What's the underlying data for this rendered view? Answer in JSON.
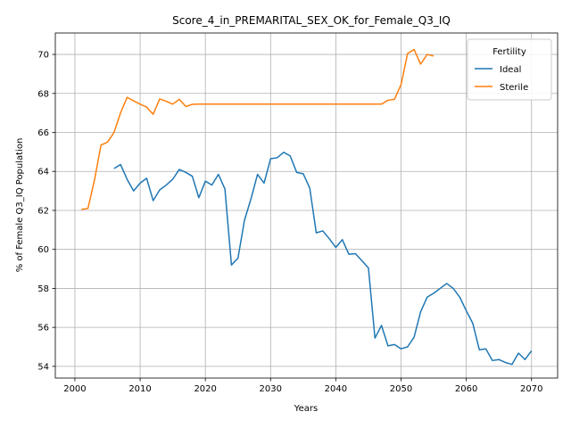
{
  "chart_data": {
    "type": "line",
    "title": "Score_4_in_PREMARITAL_SEX_OK_for_Female_Q3_IQ",
    "xlabel": "Years",
    "ylabel": "% of Female Q3_IQ Population",
    "xlim": [
      1997,
      2074
    ],
    "ylim": [
      53.4,
      71.1
    ],
    "xticks": [
      2000,
      2010,
      2020,
      2030,
      2040,
      2050,
      2060,
      2070
    ],
    "yticks": [
      54,
      56,
      58,
      60,
      62,
      64,
      66,
      68,
      70
    ],
    "grid": true,
    "legend": {
      "title": "Fertility",
      "placement": "top-right"
    },
    "series": [
      {
        "name": "Ideal",
        "color": "#1f77b4",
        "x": [
          2006,
          2007,
          2008,
          2009,
          2010,
          2011,
          2012,
          2013,
          2014,
          2015,
          2016,
          2017,
          2018,
          2019,
          2020,
          2021,
          2022,
          2023,
          2024,
          2025,
          2026,
          2027,
          2028,
          2029,
          2030,
          2031,
          2032,
          2033,
          2034,
          2035,
          2036,
          2037,
          2038,
          2039,
          2040,
          2041,
          2042,
          2043,
          2044,
          2045,
          2046,
          2047,
          2048,
          2049,
          2050,
          2051,
          2052,
          2053,
          2054,
          2055,
          2056,
          2057,
          2058,
          2059,
          2060,
          2061,
          2062,
          2063,
          2064,
          2065,
          2066,
          2067,
          2068,
          2069,
          2070
        ],
        "y": [
          64.15,
          64.35,
          63.6,
          63.0,
          63.4,
          63.65,
          62.5,
          63.05,
          63.3,
          63.6,
          64.1,
          63.95,
          63.75,
          62.65,
          63.5,
          63.3,
          63.85,
          63.1,
          59.2,
          59.55,
          61.5,
          62.6,
          63.85,
          63.4,
          64.65,
          64.7,
          64.98,
          64.8,
          63.95,
          63.88,
          63.15,
          60.85,
          60.95,
          60.55,
          60.1,
          60.5,
          59.75,
          59.78,
          59.42,
          59.05,
          55.45,
          56.1,
          55.05,
          55.12,
          54.9,
          55.0,
          55.5,
          56.8,
          57.55,
          57.75,
          58.0,
          58.25,
          58.0,
          57.55,
          56.85,
          56.2,
          54.85,
          54.9,
          54.3,
          54.35,
          54.2,
          54.1,
          54.68,
          54.35,
          54.8
        ]
      },
      {
        "name": "Sterile",
        "color": "#ff7f0e",
        "x": [
          2001,
          2002,
          2003,
          2004,
          2005,
          2006,
          2007,
          2008,
          2009,
          2010,
          2011,
          2012,
          2013,
          2014,
          2015,
          2016,
          2017,
          2018,
          2019,
          2020,
          2025,
          2030,
          2035,
          2040,
          2045,
          2047,
          2048,
          2049,
          2050,
          2051,
          2052,
          2053,
          2054,
          2055
        ],
        "y": [
          62.05,
          62.1,
          63.55,
          65.35,
          65.5,
          66.0,
          67.0,
          67.8,
          67.62,
          67.45,
          67.3,
          66.93,
          67.72,
          67.6,
          67.45,
          67.7,
          67.33,
          67.44,
          67.45,
          67.45,
          67.45,
          67.45,
          67.45,
          67.45,
          67.45,
          67.45,
          67.65,
          67.7,
          68.45,
          70.05,
          70.25,
          69.5,
          70.0,
          69.92
        ]
      }
    ]
  }
}
